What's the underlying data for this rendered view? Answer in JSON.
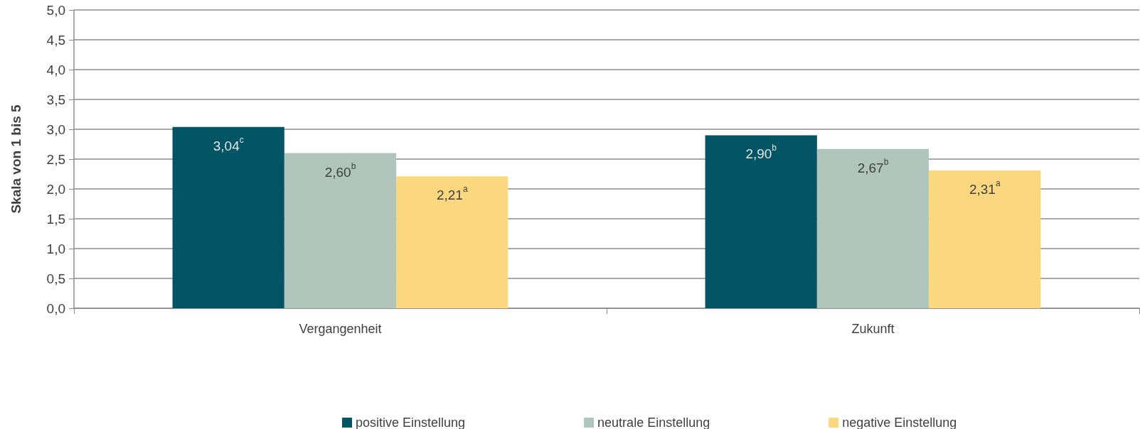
{
  "chart_data": {
    "type": "bar",
    "ylabel": "Skala von 1 bis 5",
    "categories": [
      "Vergangenheit",
      "Zukunft"
    ],
    "series": [
      {
        "name": "positive Einstellung",
        "color": "#035566",
        "values": [
          3.04,
          2.9
        ],
        "value_labels": [
          "3,04$^{c}$",
          "2,90$^{b}$"
        ]
      },
      {
        "name": "neutrale Einstellung",
        "color": "#b0c5bb",
        "values": [
          2.6,
          2.67
        ],
        "value_labels": [
          "2,60$^{b}$",
          "2,67$^{b}$"
        ]
      },
      {
        "name": "negative Einstellung",
        "color": "#fbd87f",
        "values": [
          2.21,
          2.31
        ],
        "value_labels": [
          "2,21$^{a}$",
          "2,31$^{a}$"
        ]
      }
    ],
    "ylim": [
      0,
      5
    ],
    "yticks": [
      {
        "value": 0,
        "label": "0,0"
      },
      {
        "value": 0.5,
        "label": "0,5"
      },
      {
        "value": 1,
        "label": "1,0"
      },
      {
        "value": 1.5,
        "label": "1,5"
      },
      {
        "value": 2,
        "label": "2,0"
      },
      {
        "value": 2.5,
        "label": "2,5"
      },
      {
        "value": 3,
        "label": "3,0"
      },
      {
        "value": 3.5,
        "label": "3,5"
      },
      {
        "value": 4,
        "label": "4,0"
      },
      {
        "value": 4.5,
        "label": "4,5"
      },
      {
        "value": 5,
        "label": "5,0"
      }
    ],
    "grid": "y",
    "legend": "bottom"
  }
}
